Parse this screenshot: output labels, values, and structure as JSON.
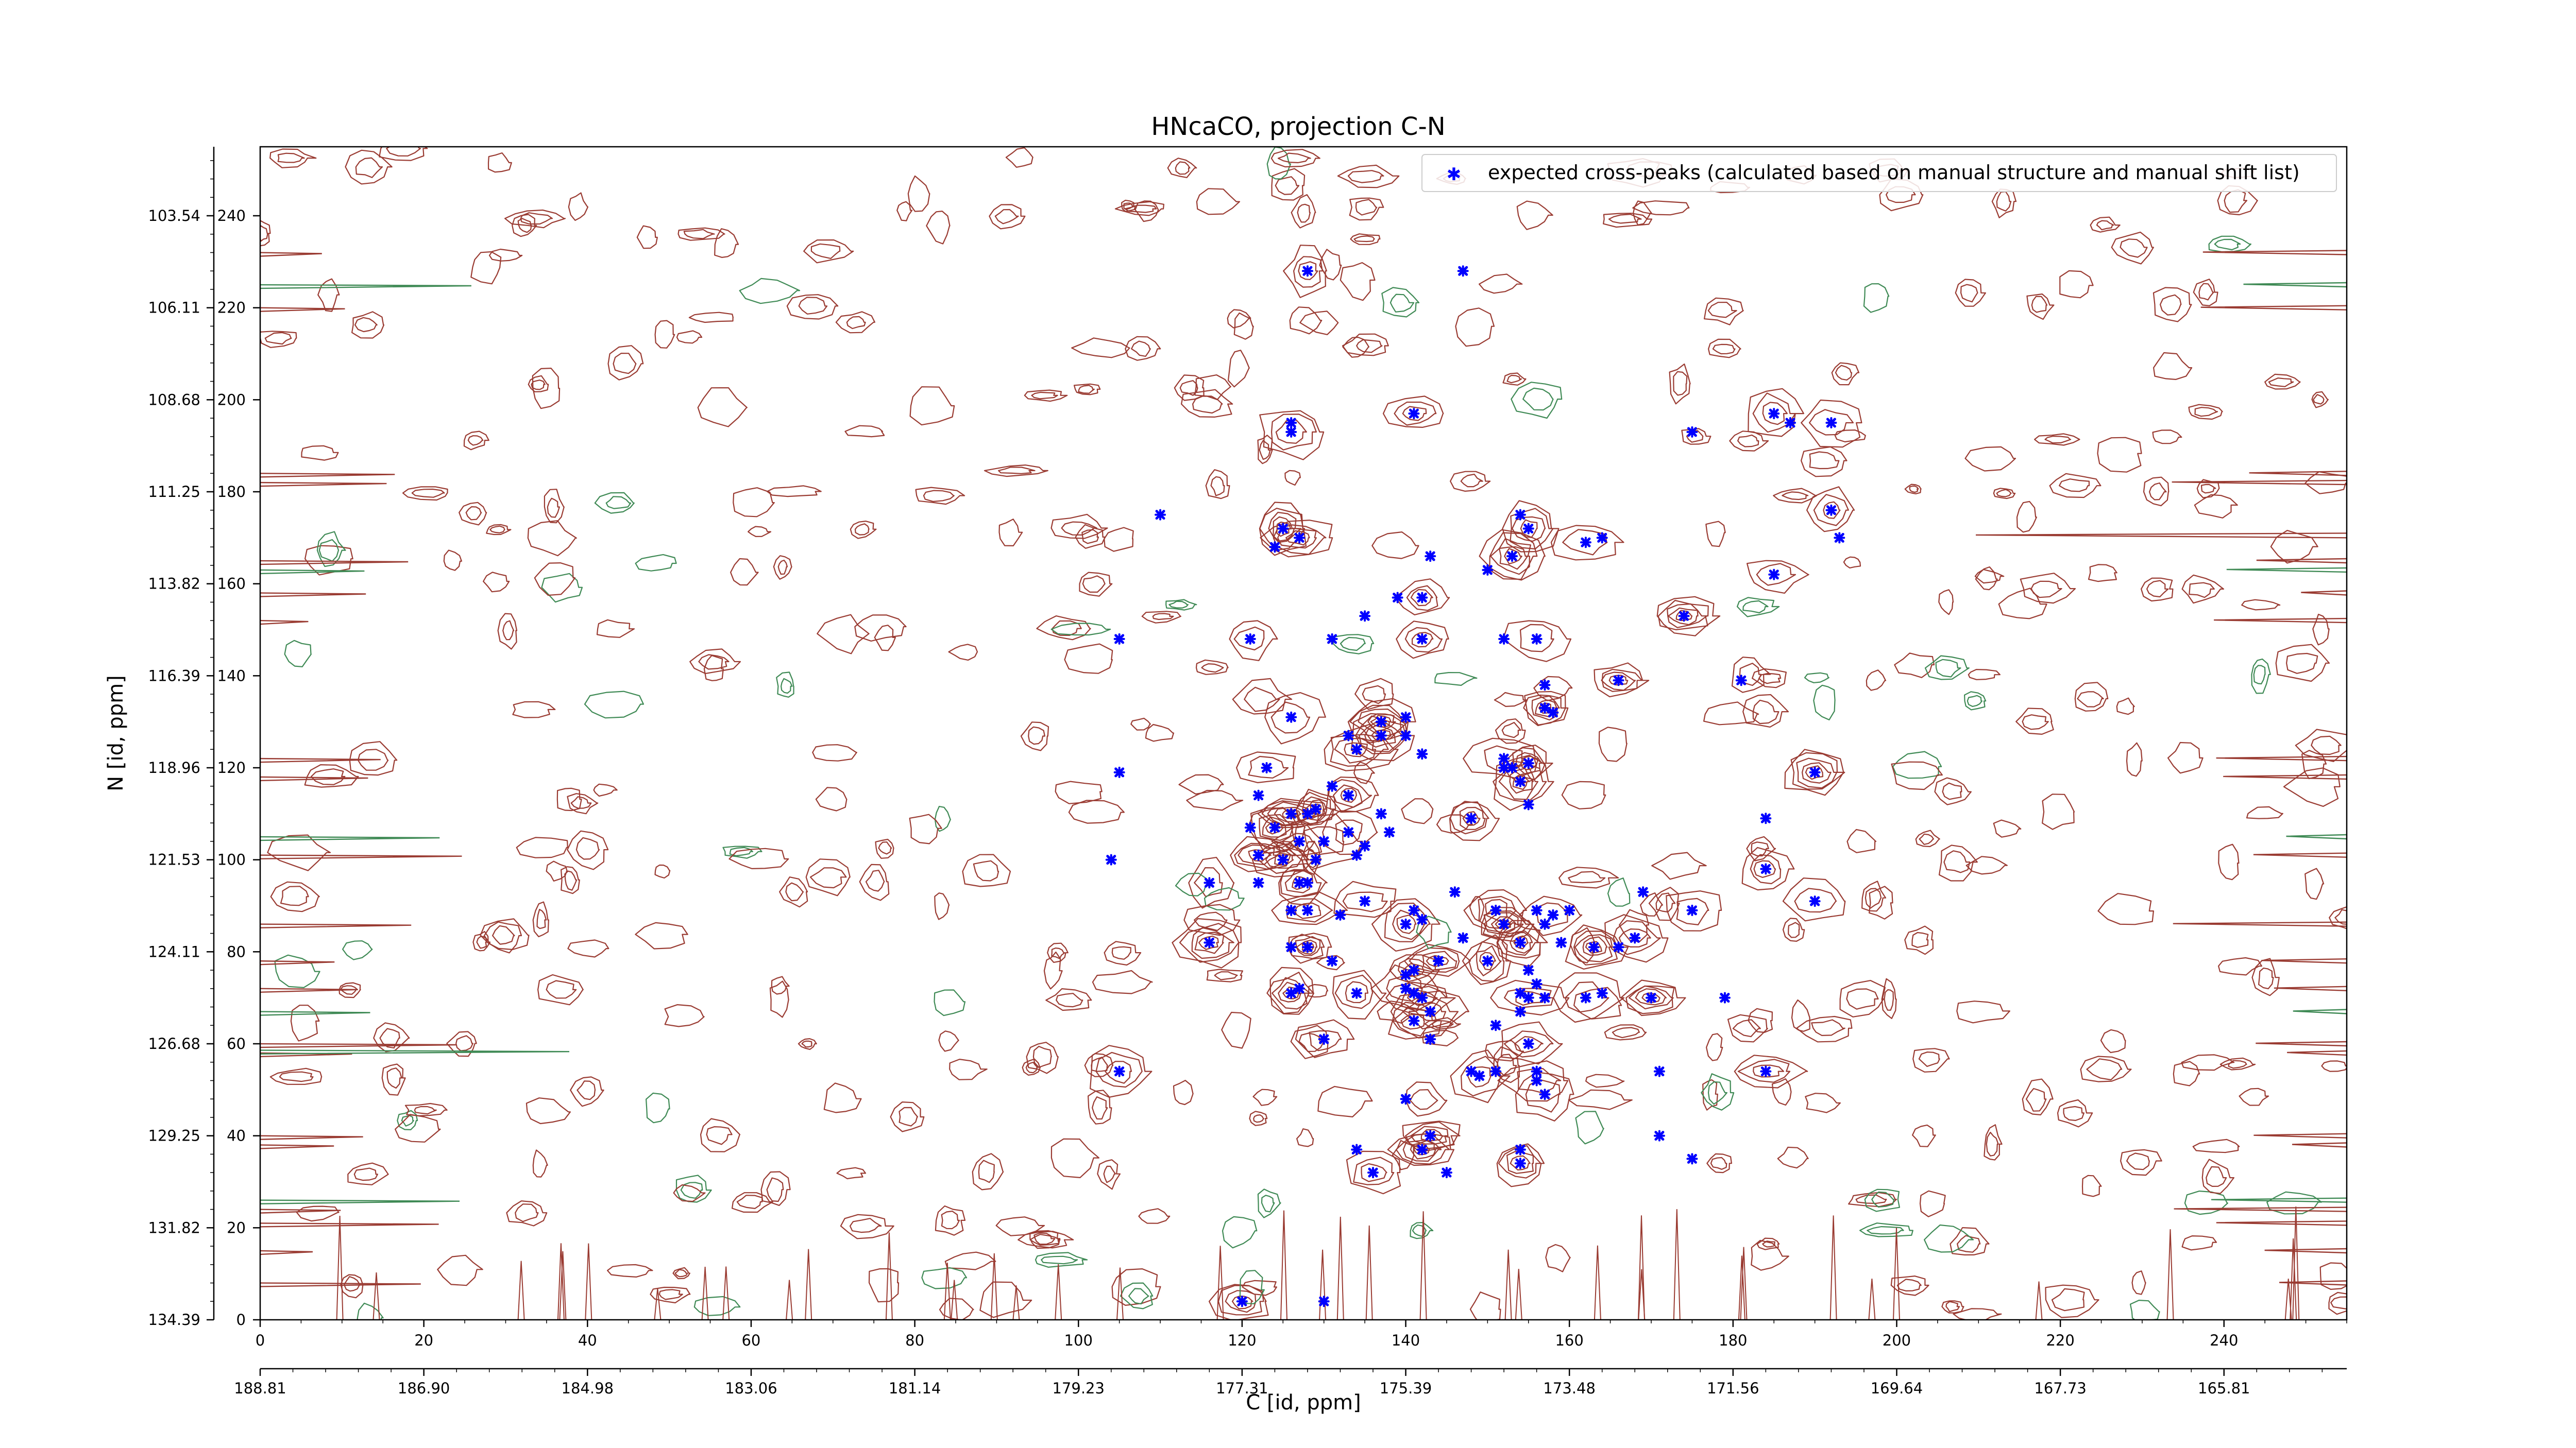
{
  "chart_data": {
    "type": "scatter",
    "title": "HNcaCO, projection C-N",
    "xlabel": "C [id, ppm]",
    "ylabel": "N [id, ppm]",
    "xlim": [
      0,
      255
    ],
    "ylim": [
      0,
      255
    ],
    "x_ticks": [
      0,
      20,
      40,
      60,
      80,
      100,
      120,
      140,
      160,
      180,
      200,
      220,
      240
    ],
    "y_ticks": [
      0,
      20,
      40,
      60,
      80,
      100,
      120,
      140,
      160,
      180,
      200,
      220,
      240
    ],
    "secondary_x_ticks": [
      {
        "at": 0,
        "label": "188.81"
      },
      {
        "at": 20,
        "label": "186.90"
      },
      {
        "at": 40,
        "label": "184.98"
      },
      {
        "at": 60,
        "label": "183.06"
      },
      {
        "at": 80,
        "label": "181.14"
      },
      {
        "at": 100,
        "label": "179.23"
      },
      {
        "at": 120,
        "label": "177.31"
      },
      {
        "at": 140,
        "label": "175.39"
      },
      {
        "at": 160,
        "label": "173.48"
      },
      {
        "at": 180,
        "label": "171.56"
      },
      {
        "at": 200,
        "label": "169.64"
      },
      {
        "at": 220,
        "label": "167.73"
      },
      {
        "at": 240,
        "label": "165.81"
      }
    ],
    "secondary_y_ticks": [
      {
        "at": 0,
        "label": "134.39"
      },
      {
        "at": 20,
        "label": "131.82"
      },
      {
        "at": 40,
        "label": "129.25"
      },
      {
        "at": 60,
        "label": "126.68"
      },
      {
        "at": 80,
        "label": "124.11"
      },
      {
        "at": 100,
        "label": "121.53"
      },
      {
        "at": 120,
        "label": "118.96"
      },
      {
        "at": 140,
        "label": "116.39"
      },
      {
        "at": 160,
        "label": "113.82"
      },
      {
        "at": 180,
        "label": "111.25"
      },
      {
        "at": 200,
        "label": "108.68"
      },
      {
        "at": 220,
        "label": "106.11"
      },
      {
        "at": 240,
        "label": "103.54"
      }
    ],
    "legend": {
      "placement": "top-right",
      "label": "expected cross-peaks (calculated based on manual structure and manual shift list)"
    },
    "series": [
      {
        "name": "expected cross-peaks (calculated based on manual structure and manual shift list)",
        "color": "#0000ff",
        "marker": "x",
        "points": [
          [
            128,
            228
          ],
          [
            147,
            228
          ],
          [
            141,
            197
          ],
          [
            126,
            195
          ],
          [
            126,
            193
          ],
          [
            175,
            193
          ],
          [
            185,
            197
          ],
          [
            187,
            195
          ],
          [
            192,
            195
          ],
          [
            110,
            175
          ],
          [
            125,
            172
          ],
          [
            124,
            168
          ],
          [
            127,
            170
          ],
          [
            154,
            175
          ],
          [
            155,
            172
          ],
          [
            164,
            170
          ],
          [
            162,
            169
          ],
          [
            143,
            166
          ],
          [
            192,
            176
          ],
          [
            193,
            170
          ],
          [
            153,
            166
          ],
          [
            150,
            163
          ],
          [
            185,
            162
          ],
          [
            139,
            157
          ],
          [
            142,
            157
          ],
          [
            135,
            153
          ],
          [
            174,
            153
          ],
          [
            105,
            148
          ],
          [
            121,
            148
          ],
          [
            131,
            148
          ],
          [
            142,
            148
          ],
          [
            152,
            148
          ],
          [
            156,
            148
          ],
          [
            157,
            138
          ],
          [
            166,
            139
          ],
          [
            181,
            139
          ],
          [
            157,
            133
          ],
          [
            158,
            132
          ],
          [
            126,
            131
          ],
          [
            133,
            127
          ],
          [
            137,
            130
          ],
          [
            140,
            131
          ],
          [
            137,
            127
          ],
          [
            140,
            127
          ],
          [
            134,
            124
          ],
          [
            142,
            123
          ],
          [
            152,
            122
          ],
          [
            153,
            120
          ],
          [
            155,
            121
          ],
          [
            105,
            119
          ],
          [
            123,
            120
          ],
          [
            152,
            120
          ],
          [
            154,
            117
          ],
          [
            131,
            116
          ],
          [
            133,
            114
          ],
          [
            122,
            114
          ],
          [
            190,
            119
          ],
          [
            155,
            112
          ],
          [
            126,
            110
          ],
          [
            128,
            110
          ],
          [
            129,
            111
          ],
          [
            137,
            110
          ],
          [
            148,
            109
          ],
          [
            184,
            109
          ],
          [
            124,
            107
          ],
          [
            121,
            107
          ],
          [
            133,
            106
          ],
          [
            138,
            106
          ],
          [
            130,
            104
          ],
          [
            135,
            103
          ],
          [
            127,
            104
          ],
          [
            104,
            100
          ],
          [
            125,
            100
          ],
          [
            129,
            100
          ],
          [
            122,
            101
          ],
          [
            134,
            101
          ],
          [
            116,
            95
          ],
          [
            122,
            95
          ],
          [
            127,
            95
          ],
          [
            128,
            95
          ],
          [
            184,
            98
          ],
          [
            169,
            93
          ],
          [
            190,
            91
          ],
          [
            146,
            93
          ],
          [
            135,
            91
          ],
          [
            126,
            89
          ],
          [
            128,
            89
          ],
          [
            141,
            89
          ],
          [
            151,
            89
          ],
          [
            156,
            89
          ],
          [
            158,
            88
          ],
          [
            160,
            89
          ],
          [
            175,
            89
          ],
          [
            132,
            88
          ],
          [
            140,
            86
          ],
          [
            142,
            87
          ],
          [
            152,
            86
          ],
          [
            157,
            86
          ],
          [
            116,
            82
          ],
          [
            126,
            81
          ],
          [
            128,
            81
          ],
          [
            147,
            83
          ],
          [
            154,
            82
          ],
          [
            159,
            82
          ],
          [
            163,
            81
          ],
          [
            166,
            81
          ],
          [
            168,
            83
          ],
          [
            131,
            78
          ],
          [
            150,
            78
          ],
          [
            144,
            78
          ],
          [
            144,
            78
          ],
          [
            140,
            75
          ],
          [
            141,
            76
          ],
          [
            155,
            76
          ],
          [
            140,
            72
          ],
          [
            156,
            73
          ],
          [
            126,
            71
          ],
          [
            127,
            72
          ],
          [
            134,
            71
          ],
          [
            141,
            71
          ],
          [
            142,
            70
          ],
          [
            154,
            71
          ],
          [
            155,
            70
          ],
          [
            157,
            70
          ],
          [
            162,
            70
          ],
          [
            164,
            71
          ],
          [
            170,
            70
          ],
          [
            179,
            70
          ],
          [
            143,
            67
          ],
          [
            154,
            67
          ],
          [
            141,
            65
          ],
          [
            151,
            64
          ],
          [
            130,
            61
          ],
          [
            143,
            61
          ],
          [
            155,
            60
          ],
          [
            171,
            54
          ],
          [
            105,
            54
          ],
          [
            148,
            54
          ],
          [
            149,
            53
          ],
          [
            151,
            54
          ],
          [
            156,
            52
          ],
          [
            156,
            54
          ],
          [
            184,
            54
          ],
          [
            140,
            48
          ],
          [
            157,
            49
          ],
          [
            171,
            40
          ],
          [
            143,
            40
          ],
          [
            134,
            37
          ],
          [
            142,
            37
          ],
          [
            154,
            37
          ],
          [
            154,
            34
          ],
          [
            175,
            35
          ],
          [
            136,
            32
          ],
          [
            145,
            32
          ],
          [
            120,
            4
          ],
          [
            130,
            4
          ]
        ]
      }
    ]
  }
}
